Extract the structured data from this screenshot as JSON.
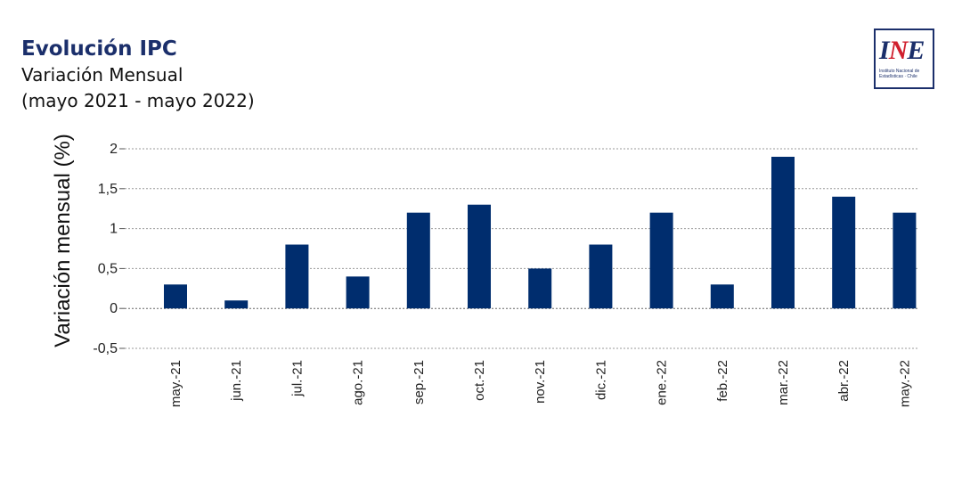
{
  "header": {
    "title": "Evolución IPC",
    "subtitle": "Variación Mensual",
    "period": "(mayo 2021 - mayo 2022)"
  },
  "logo": {
    "mark": "INE",
    "text": "Instituto Nacional de Estadísticas · Chile"
  },
  "colors": {
    "bar": "#002d6e",
    "title": "#1b2f6b",
    "grid": "#9a9a9a"
  },
  "chart_data": {
    "type": "bar",
    "categories": [
      "may.-21",
      "jun.-21",
      "jul.-21",
      "ago.-21",
      "sep.-21",
      "oct.-21",
      "nov.-21",
      "dic.-21",
      "ene.-22",
      "feb.-22",
      "mar.-22",
      "abr.-22",
      "may.-22"
    ],
    "values": [
      0.3,
      0.1,
      0.8,
      0.4,
      1.2,
      1.3,
      0.5,
      0.8,
      1.2,
      0.3,
      1.9,
      1.4,
      1.2
    ],
    "ylabel": "Variación mensual (%)",
    "ylim": [
      -0.5,
      2
    ],
    "yticks": [
      2,
      1.5,
      1,
      0.5,
      0,
      -0.5
    ],
    "ytick_labels": [
      "2",
      "1,5",
      "1",
      "0,5",
      "0",
      "-0,5"
    ],
    "grid": true
  }
}
